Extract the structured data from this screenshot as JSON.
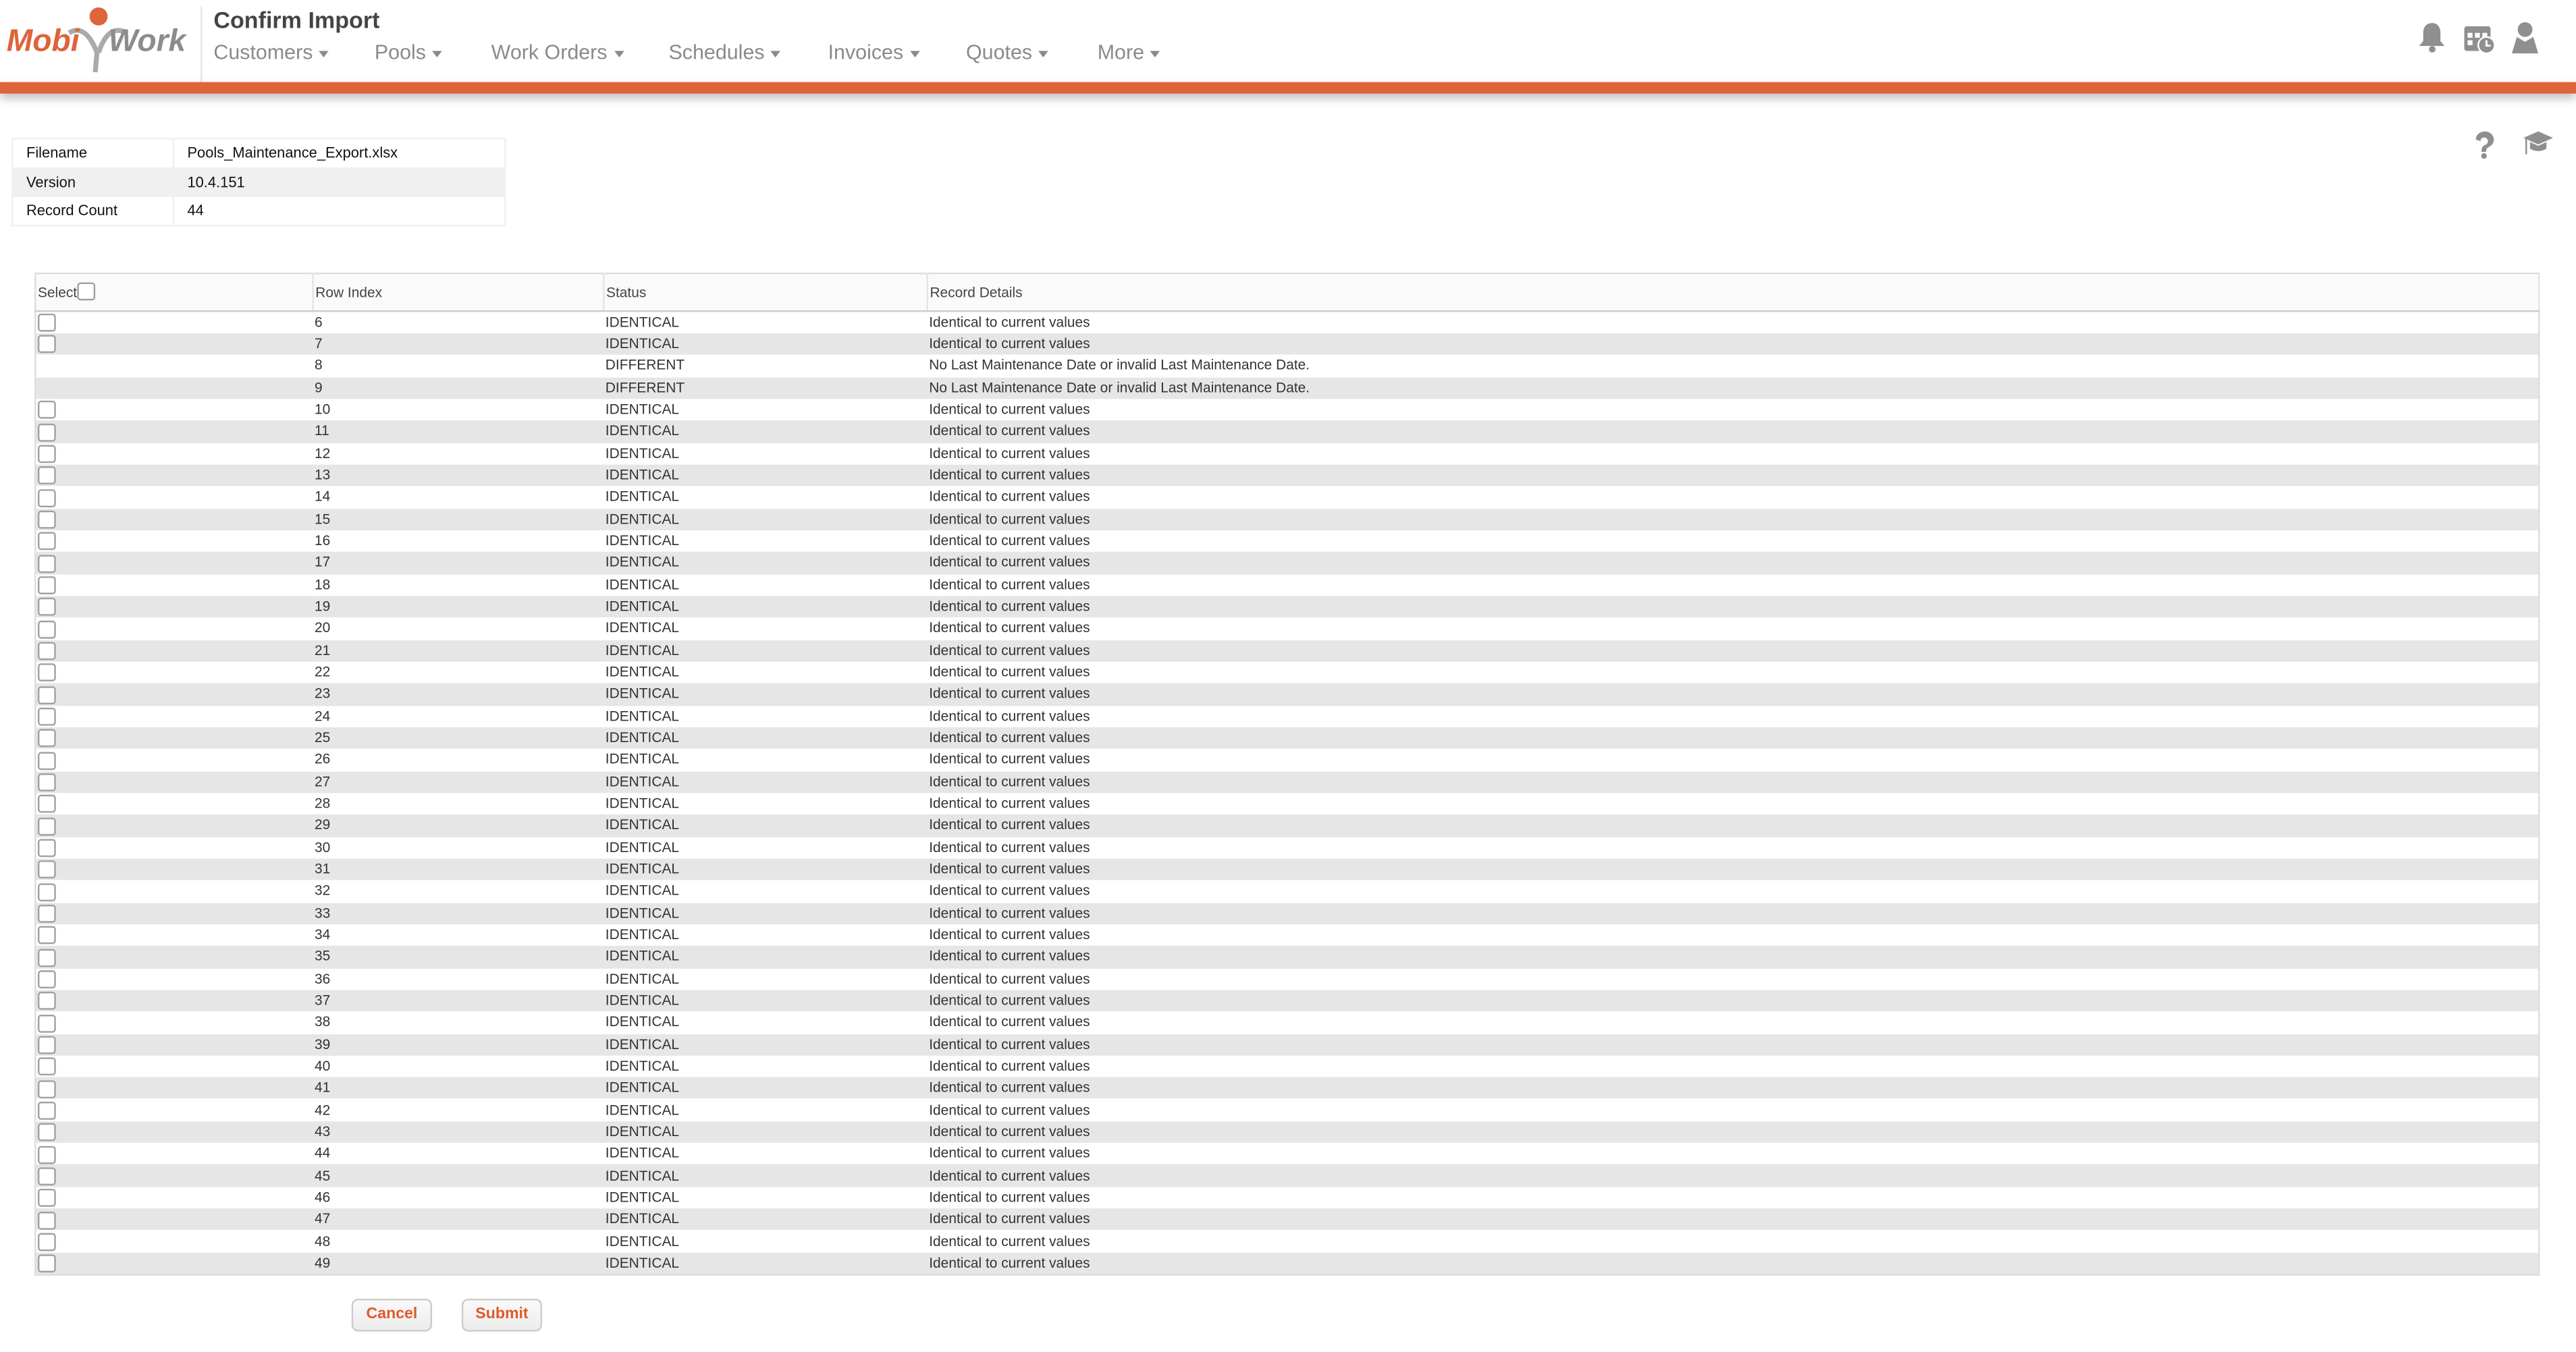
{
  "app": {
    "logo_text": "MobiWork",
    "title": "Confirm Import",
    "brand_color": "#de643a"
  },
  "nav": [
    {
      "label": "Customers"
    },
    {
      "label": "Pools"
    },
    {
      "label": "Work Orders"
    },
    {
      "label": "Schedules"
    },
    {
      "label": "Invoices"
    },
    {
      "label": "Quotes"
    },
    {
      "label": "More"
    }
  ],
  "header_icons": [
    "bell-icon",
    "calendar-clock-icon",
    "user-icon"
  ],
  "page_icons": [
    "help-icon",
    "graduation-cap-icon"
  ],
  "info": {
    "filename_label": "Filename",
    "filename": "Pools_Maintenance_Export.xlsx",
    "version_label": "Version",
    "version": "10.4.151",
    "count_label": "Record Count",
    "count": "44"
  },
  "table": {
    "columns": [
      "Select",
      "Row Index",
      "Status",
      "Record Details"
    ],
    "rows": [
      {
        "index": "6",
        "status": "IDENTICAL",
        "details": "Identical to current values",
        "selectable": true
      },
      {
        "index": "7",
        "status": "IDENTICAL",
        "details": "Identical to current values",
        "selectable": true
      },
      {
        "index": "8",
        "status": "DIFFERENT",
        "details": "No Last Maintenance Date or invalid Last Maintenance Date.",
        "selectable": false
      },
      {
        "index": "9",
        "status": "DIFFERENT",
        "details": "No Last Maintenance Date or invalid Last Maintenance Date.",
        "selectable": false
      },
      {
        "index": "10",
        "status": "IDENTICAL",
        "details": "Identical to current values",
        "selectable": true
      },
      {
        "index": "11",
        "status": "IDENTICAL",
        "details": "Identical to current values",
        "selectable": true
      },
      {
        "index": "12",
        "status": "IDENTICAL",
        "details": "Identical to current values",
        "selectable": true
      },
      {
        "index": "13",
        "status": "IDENTICAL",
        "details": "Identical to current values",
        "selectable": true
      },
      {
        "index": "14",
        "status": "IDENTICAL",
        "details": "Identical to current values",
        "selectable": true
      },
      {
        "index": "15",
        "status": "IDENTICAL",
        "details": "Identical to current values",
        "selectable": true
      },
      {
        "index": "16",
        "status": "IDENTICAL",
        "details": "Identical to current values",
        "selectable": true
      },
      {
        "index": "17",
        "status": "IDENTICAL",
        "details": "Identical to current values",
        "selectable": true
      },
      {
        "index": "18",
        "status": "IDENTICAL",
        "details": "Identical to current values",
        "selectable": true
      },
      {
        "index": "19",
        "status": "IDENTICAL",
        "details": "Identical to current values",
        "selectable": true
      },
      {
        "index": "20",
        "status": "IDENTICAL",
        "details": "Identical to current values",
        "selectable": true
      },
      {
        "index": "21",
        "status": "IDENTICAL",
        "details": "Identical to current values",
        "selectable": true
      },
      {
        "index": "22",
        "status": "IDENTICAL",
        "details": "Identical to current values",
        "selectable": true
      },
      {
        "index": "23",
        "status": "IDENTICAL",
        "details": "Identical to current values",
        "selectable": true
      },
      {
        "index": "24",
        "status": "IDENTICAL",
        "details": "Identical to current values",
        "selectable": true
      },
      {
        "index": "25",
        "status": "IDENTICAL",
        "details": "Identical to current values",
        "selectable": true
      },
      {
        "index": "26",
        "status": "IDENTICAL",
        "details": "Identical to current values",
        "selectable": true
      },
      {
        "index": "27",
        "status": "IDENTICAL",
        "details": "Identical to current values",
        "selectable": true
      },
      {
        "index": "28",
        "status": "IDENTICAL",
        "details": "Identical to current values",
        "selectable": true
      },
      {
        "index": "29",
        "status": "IDENTICAL",
        "details": "Identical to current values",
        "selectable": true
      },
      {
        "index": "30",
        "status": "IDENTICAL",
        "details": "Identical to current values",
        "selectable": true
      },
      {
        "index": "31",
        "status": "IDENTICAL",
        "details": "Identical to current values",
        "selectable": true
      },
      {
        "index": "32",
        "status": "IDENTICAL",
        "details": "Identical to current values",
        "selectable": true
      },
      {
        "index": "33",
        "status": "IDENTICAL",
        "details": "Identical to current values",
        "selectable": true
      },
      {
        "index": "34",
        "status": "IDENTICAL",
        "details": "Identical to current values",
        "selectable": true
      },
      {
        "index": "35",
        "status": "IDENTICAL",
        "details": "Identical to current values",
        "selectable": true
      },
      {
        "index": "36",
        "status": "IDENTICAL",
        "details": "Identical to current values",
        "selectable": true
      },
      {
        "index": "37",
        "status": "IDENTICAL",
        "details": "Identical to current values",
        "selectable": true
      },
      {
        "index": "38",
        "status": "IDENTICAL",
        "details": "Identical to current values",
        "selectable": true
      },
      {
        "index": "39",
        "status": "IDENTICAL",
        "details": "Identical to current values",
        "selectable": true
      },
      {
        "index": "40",
        "status": "IDENTICAL",
        "details": "Identical to current values",
        "selectable": true
      },
      {
        "index": "41",
        "status": "IDENTICAL",
        "details": "Identical to current values",
        "selectable": true
      },
      {
        "index": "42",
        "status": "IDENTICAL",
        "details": "Identical to current values",
        "selectable": true
      },
      {
        "index": "43",
        "status": "IDENTICAL",
        "details": "Identical to current values",
        "selectable": true
      },
      {
        "index": "44",
        "status": "IDENTICAL",
        "details": "Identical to current values",
        "selectable": true
      },
      {
        "index": "45",
        "status": "IDENTICAL",
        "details": "Identical to current values",
        "selectable": true
      },
      {
        "index": "46",
        "status": "IDENTICAL",
        "details": "Identical to current values",
        "selectable": true
      },
      {
        "index": "47",
        "status": "IDENTICAL",
        "details": "Identical to current values",
        "selectable": true
      },
      {
        "index": "48",
        "status": "IDENTICAL",
        "details": "Identical to current values",
        "selectable": true
      },
      {
        "index": "49",
        "status": "IDENTICAL",
        "details": "Identical to current values",
        "selectable": true
      }
    ]
  },
  "buttons": {
    "cancel": "Cancel",
    "submit": "Submit"
  }
}
